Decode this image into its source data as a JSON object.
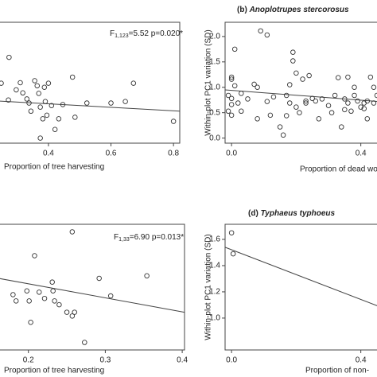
{
  "chart_data": [
    {
      "type": "scatter",
      "x_label": "Proportion of tree harvesting",
      "annotation": {
        "f": "F",
        "sub": "1,123",
        "rest": "=5.52 p=0.020*"
      },
      "xlim": [
        0.24,
        0.82
      ],
      "ylim": [
        -0.1,
        2.28
      ],
      "xticks": [
        {
          "value": 0.4,
          "label": "0.4"
        },
        {
          "value": 0.6,
          "label": "0.6"
        },
        {
          "value": 0.8,
          "label": "0.8"
        }
      ],
      "color": "#333333",
      "x": [
        0.274,
        0.249,
        0.272,
        0.297,
        0.31,
        0.318,
        0.331,
        0.338,
        0.344,
        0.356,
        0.364,
        0.369,
        0.374,
        0.382,
        0.387,
        0.39,
        0.395,
        0.4,
        0.41,
        0.421,
        0.374,
        0.433,
        0.446,
        0.477,
        0.485,
        0.523,
        0.6,
        0.672,
        0.646,
        0.8
      ],
      "values": [
        1.59,
        1.08,
        0.75,
        0.95,
        1.09,
        0.89,
        0.77,
        0.69,
        0.53,
        1.13,
        1.03,
        0.88,
        0.61,
        0.38,
        1.0,
        0.72,
        0.45,
        1.08,
        0.64,
        0.17,
        0.0,
        0.38,
        0.66,
        1.2,
        0.41,
        0.69,
        0.69,
        1.08,
        0.72,
        0.33
      ],
      "fit": {
        "x": [
          0.24,
          0.82
        ],
        "y": [
          0.73,
          0.53
        ]
      }
    },
    {
      "type": "scatter",
      "panel": "(b)",
      "title": "Anoplotrupes stercorosus",
      "y_label": "Within-plot PC1 variation (SD)",
      "x_label": "Proportion of dead wood",
      "xlim": [
        -0.02,
        0.455
      ],
      "ylim": [
        -0.1,
        2.28
      ],
      "xticks": [
        {
          "value": 0,
          "label": "0.0"
        },
        {
          "value": 0.4,
          "label": "0.4"
        }
      ],
      "yticks": [
        {
          "value": 0,
          "label": "0.0"
        },
        {
          "value": 0.5,
          "label": "0.5"
        },
        {
          "value": 1,
          "label": "1.0"
        },
        {
          "value": 1.5,
          "label": "1.5"
        },
        {
          "value": 2,
          "label": "2.0"
        }
      ],
      "color": "#333333",
      "x": [
        -0.01,
        -0.01,
        0.0,
        0.0,
        0.0,
        0.0,
        0.0,
        0.01,
        0.01,
        0.02,
        0.03,
        0.03,
        0.05,
        0.07,
        0.08,
        0.08,
        0.09,
        0.11,
        0.11,
        0.12,
        0.13,
        0.15,
        0.16,
        0.17,
        0.17,
        0.18,
        0.18,
        0.19,
        0.19,
        0.2,
        0.2,
        0.21,
        0.22,
        0.23,
        0.23,
        0.24,
        0.25,
        0.26,
        0.27,
        0.28,
        0.3,
        0.31,
        0.32,
        0.33,
        0.34,
        0.35,
        0.35,
        0.36,
        0.36,
        0.37,
        0.38,
        0.38,
        0.39,
        0.4,
        0.41,
        0.41,
        0.42,
        0.42,
        0.43,
        0.44,
        0.44,
        0.45
      ],
      "values": [
        0.53,
        0.84,
        0.66,
        0.45,
        1.16,
        1.2,
        0.78,
        1.03,
        1.75,
        0.69,
        0.53,
        0.88,
        0.77,
        1.06,
        0.38,
        1.0,
        2.11,
        2.03,
        0.72,
        0.45,
        0.81,
        0.22,
        0.06,
        0.44,
        0.84,
        1.05,
        0.69,
        1.69,
        1.52,
        0.61,
        1.28,
        0.5,
        1.16,
        0.73,
        0.69,
        1.23,
        0.78,
        0.73,
        0.38,
        0.77,
        0.64,
        0.5,
        0.84,
        1.19,
        0.22,
        0.77,
        0.56,
        1.2,
        0.69,
        0.53,
        0.84,
        1.0,
        0.73,
        0.61,
        0.58,
        0.69,
        0.38,
        0.73,
        1.2,
        1.0,
        0.69,
        0.84
      ],
      "fit": {
        "x": [
          -0.02,
          0.455
        ],
        "y": [
          0.95,
          0.72
        ]
      }
    },
    {
      "type": "scatter",
      "x_label": "Proportion of tree harvesting",
      "annotation": {
        "f": "F",
        "sub": "1,33",
        "rest": "=6.90 p=0.013*"
      },
      "xlim": [
        0.161,
        0.403
      ],
      "ylim": [
        0,
        1
      ],
      "xticks": [
        0.2,
        0.3,
        0.4
      ],
      "color": "#333333",
      "x": [
        0.257,
        0.208,
        0.18,
        0.184,
        0.198,
        0.201,
        0.214,
        0.221,
        0.231,
        0.232,
        0.234,
        0.24,
        0.25,
        0.257,
        0.26,
        0.203,
        0.273,
        0.292,
        0.307,
        0.354
      ],
      "values": [
        0.94,
        0.75,
        0.44,
        0.39,
        0.47,
        0.39,
        0.46,
        0.41,
        0.54,
        0.47,
        0.39,
        0.36,
        0.3,
        0.27,
        0.3,
        0.22,
        0.06,
        0.57,
        0.43,
        0.59
      ],
      "fit": {
        "x": [
          0.161,
          0.403
        ],
        "y": [
          0.57,
          0.3
        ]
      }
    },
    {
      "type": "scatter",
      "panel": "(d)",
      "title": "Typhaeus typhoeus",
      "y_label": "Within-plot PC1 variation (SD)",
      "x_label": "Proportion of non-",
      "xlim": [
        -0.02,
        0.455
      ],
      "ylim": [
        0.757,
        1.715
      ],
      "xticks": [
        {
          "value": 0,
          "label": "0.0"
        },
        {
          "value": 0.4,
          "label": "0.4"
        }
      ],
      "yticks": [
        {
          "value": 1,
          "label": "1.0"
        },
        {
          "value": 1.2,
          "label": "1.2"
        },
        {
          "value": 1.4,
          "label": "1.4"
        },
        {
          "value": 1.6,
          "label": "1.6"
        }
      ],
      "color": "#333333",
      "x": [
        0.0,
        0.005
      ],
      "values": [
        1.65,
        1.49
      ],
      "fit": {
        "x": [
          -0.02,
          0.455
        ],
        "y": [
          1.54,
          1.09
        ]
      }
    }
  ]
}
